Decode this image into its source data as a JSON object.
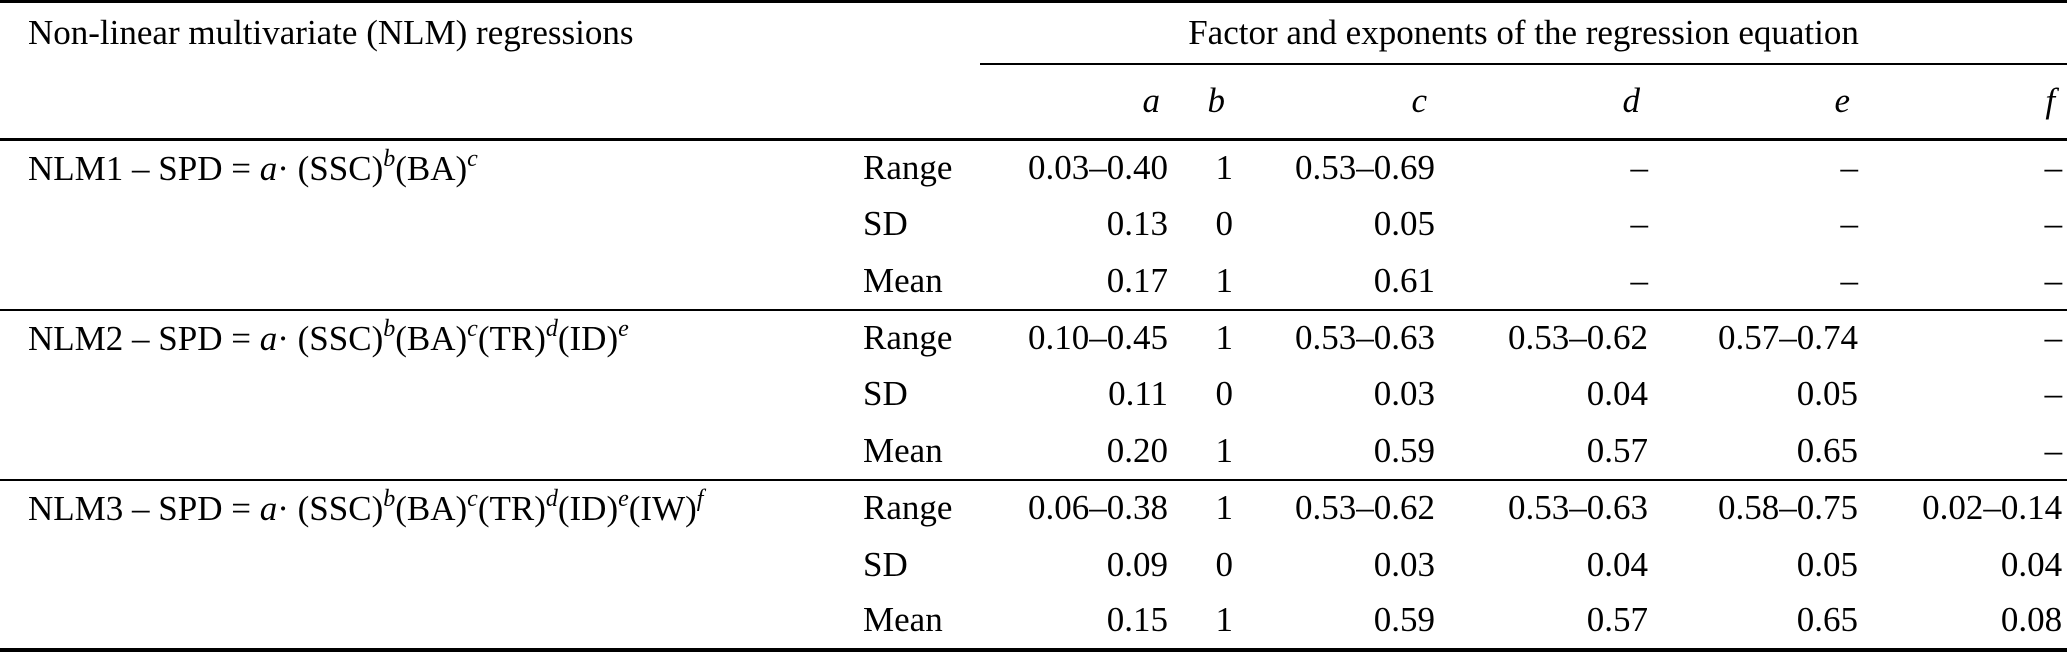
{
  "table": {
    "left_header": "Non-linear multivariate (NLM) regressions",
    "right_header": "Factor and exponents of the regression equation",
    "columns": [
      "a",
      "b",
      "c",
      "d",
      "e",
      "f"
    ],
    "groups": [
      {
        "id": "nlm1",
        "formula": [
          {
            "t": "rm",
            "v": "NLM1 – SPD = "
          },
          {
            "t": "it",
            "v": "a"
          },
          {
            "t": "rm",
            "v": "· "
          },
          {
            "t": "rm",
            "v": "(SSC)"
          },
          {
            "t": "sup",
            "v": "b"
          },
          {
            "t": "rm",
            "v": "(BA)"
          },
          {
            "t": "sup",
            "v": "c"
          }
        ],
        "rows": [
          {
            "label": "Range",
            "values": [
              "0.03–0.40",
              "1",
              "0.53–0.69",
              "–",
              "–",
              "–"
            ]
          },
          {
            "label": "SD",
            "values": [
              "0.13",
              "0",
              "0.05",
              "–",
              "–",
              "–"
            ]
          },
          {
            "label": "Mean",
            "values": [
              "0.17",
              "1",
              "0.61",
              "–",
              "–",
              "–"
            ]
          }
        ]
      },
      {
        "id": "nlm2",
        "formula": [
          {
            "t": "rm",
            "v": "NLM2 – SPD = "
          },
          {
            "t": "it",
            "v": "a"
          },
          {
            "t": "rm",
            "v": "· "
          },
          {
            "t": "rm",
            "v": "(SSC)"
          },
          {
            "t": "sup",
            "v": "b"
          },
          {
            "t": "rm",
            "v": "(BA)"
          },
          {
            "t": "sup",
            "v": "c"
          },
          {
            "t": "rm",
            "v": "(TR)"
          },
          {
            "t": "sup",
            "v": "d"
          },
          {
            "t": "rm",
            "v": "(ID)"
          },
          {
            "t": "sup",
            "v": "e"
          }
        ],
        "rows": [
          {
            "label": "Range",
            "values": [
              "0.10–0.45",
              "1",
              "0.53–0.63",
              "0.53–0.62",
              "0.57–0.74",
              "–"
            ]
          },
          {
            "label": "SD",
            "values": [
              "0.11",
              "0",
              "0.03",
              "0.04",
              "0.05",
              "–"
            ]
          },
          {
            "label": "Mean",
            "values": [
              "0.20",
              "1",
              "0.59",
              "0.57",
              "0.65",
              "–"
            ]
          }
        ]
      },
      {
        "id": "nlm3",
        "formula": [
          {
            "t": "rm",
            "v": "NLM3 – SPD = "
          },
          {
            "t": "it",
            "v": "a"
          },
          {
            "t": "rm",
            "v": "· "
          },
          {
            "t": "rm",
            "v": "(SSC)"
          },
          {
            "t": "sup",
            "v": "b"
          },
          {
            "t": "rm",
            "v": "(BA)"
          },
          {
            "t": "sup",
            "v": "c"
          },
          {
            "t": "rm",
            "v": "(TR)"
          },
          {
            "t": "sup",
            "v": "d"
          },
          {
            "t": "rm",
            "v": "(ID)"
          },
          {
            "t": "sup",
            "v": "e"
          },
          {
            "t": "rm",
            "v": "(IW)"
          },
          {
            "t": "sup",
            "v": "f"
          }
        ],
        "rows": [
          {
            "label": "Range",
            "values": [
              "0.06–0.38",
              "1",
              "0.53–0.62",
              "0.53–0.63",
              "0.58–0.75",
              "0.02–0.14"
            ]
          },
          {
            "label": "SD",
            "values": [
              "0.09",
              "0",
              "0.03",
              "0.04",
              "0.05",
              "0.04"
            ]
          },
          {
            "label": "Mean",
            "values": [
              "0.15",
              "1",
              "0.59",
              "0.57",
              "0.65",
              "0.08"
            ]
          }
        ]
      }
    ],
    "text_color": "#000000",
    "background_color": "#ffffff"
  }
}
